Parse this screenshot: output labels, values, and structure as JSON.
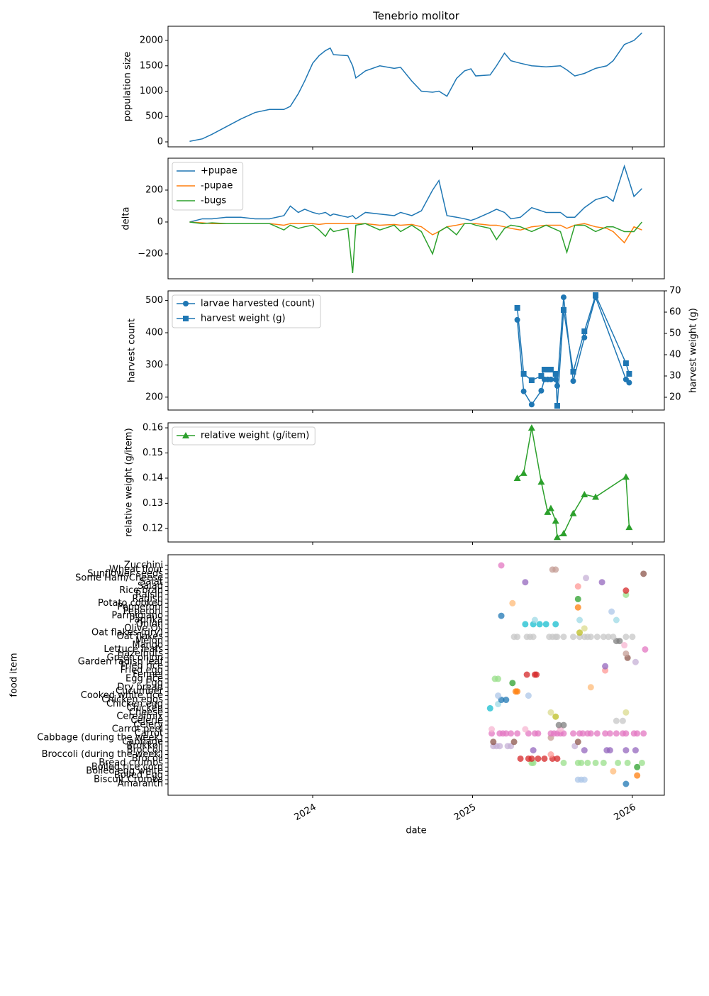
{
  "chart_data": [
    {
      "type": "line",
      "title": "Tenebrio molitor",
      "ylabel": "population size",
      "color": "#1f77b4",
      "x": [
        2023.23,
        2023.31,
        2023.37,
        2023.46,
        2023.55,
        2023.64,
        2023.73,
        2023.82,
        2023.86,
        2023.91,
        2023.95,
        2024.0,
        2024.04,
        2024.08,
        2024.11,
        2024.13,
        2024.22,
        2024.25,
        2024.27,
        2024.33,
        2024.42,
        2024.51,
        2024.55,
        2024.62,
        2024.68,
        2024.75,
        2024.79,
        2024.84,
        2024.9,
        2024.95,
        2024.99,
        2025.02,
        2025.11,
        2025.15,
        2025.2,
        2025.24,
        2025.3,
        2025.37,
        2025.46,
        2025.55,
        2025.59,
        2025.64,
        2025.7,
        2025.77,
        2025.84,
        2025.88,
        2025.95,
        2026.01,
        2026.06
      ],
      "values": [
        10,
        60,
        150,
        300,
        450,
        580,
        640,
        640,
        700,
        950,
        1200,
        1550,
        1700,
        1800,
        1850,
        1720,
        1700,
        1500,
        1260,
        1400,
        1500,
        1450,
        1470,
        1200,
        1000,
        980,
        1000,
        900,
        1250,
        1400,
        1440,
        1300,
        1320,
        1500,
        1750,
        1600,
        1550,
        1500,
        1480,
        1500,
        1420,
        1300,
        1350,
        1450,
        1500,
        1600,
        1920,
        2000,
        2150
      ],
      "xlim": [
        2023.095,
        2026.2
      ],
      "xticks": [
        2024,
        2025,
        2026
      ],
      "ylim": [
        -98,
        2280
      ],
      "yticks": [
        0,
        500,
        1000,
        1500,
        2000
      ]
    },
    {
      "type": "line",
      "ylabel": "delta",
      "legend": "upper left",
      "x": [
        2023.23,
        2023.31,
        2023.37,
        2023.46,
        2023.55,
        2023.64,
        2023.73,
        2023.82,
        2023.86,
        2023.91,
        2023.95,
        2024.0,
        2024.04,
        2024.08,
        2024.11,
        2024.13,
        2024.22,
        2024.25,
        2024.27,
        2024.33,
        2024.42,
        2024.51,
        2024.55,
        2024.62,
        2024.68,
        2024.75,
        2024.79,
        2024.84,
        2024.9,
        2024.95,
        2024.99,
        2025.02,
        2025.11,
        2025.15,
        2025.2,
        2025.24,
        2025.3,
        2025.37,
        2025.46,
        2025.55,
        2025.59,
        2025.64,
        2025.7,
        2025.77,
        2025.84,
        2025.88,
        2025.95,
        2026.01,
        2026.06
      ],
      "series": [
        {
          "name": "+pupae",
          "color": "#1f77b4",
          "values": [
            0,
            20,
            20,
            30,
            30,
            20,
            20,
            40,
            100,
            60,
            80,
            60,
            50,
            60,
            40,
            50,
            30,
            40,
            20,
            60,
            50,
            40,
            60,
            40,
            70,
            200,
            260,
            40,
            30,
            20,
            10,
            20,
            60,
            80,
            60,
            20,
            30,
            90,
            60,
            60,
            30,
            30,
            90,
            140,
            160,
            130,
            350,
            160,
            210
          ]
        },
        {
          "name": "-pupae",
          "color": "#ff7f0e",
          "values": [
            0,
            -5,
            -10,
            -10,
            -10,
            -10,
            -10,
            -20,
            -10,
            -10,
            -10,
            -10,
            -15,
            -10,
            -10,
            -10,
            -10,
            -10,
            -10,
            -10,
            -20,
            -15,
            -20,
            -15,
            -30,
            -80,
            -60,
            -30,
            -20,
            -10,
            -10,
            -10,
            -20,
            -20,
            -30,
            -40,
            -50,
            -30,
            -20,
            -20,
            -40,
            -20,
            -10,
            -30,
            -40,
            -60,
            -130,
            -30,
            -50
          ]
        },
        {
          "name": "-bugs",
          "color": "#2ca02c",
          "values": [
            0,
            -10,
            -5,
            -10,
            -10,
            -10,
            -10,
            -50,
            -20,
            -40,
            -30,
            -20,
            -50,
            -90,
            -40,
            -60,
            -40,
            -320,
            -20,
            -10,
            -50,
            -20,
            -60,
            -20,
            -60,
            -200,
            -60,
            -30,
            -80,
            -10,
            -10,
            -20,
            -40,
            -110,
            -40,
            -20,
            -30,
            -60,
            -20,
            -60,
            -190,
            -20,
            -20,
            -60,
            -30,
            -30,
            -60,
            -60,
            0
          ]
        }
      ],
      "xlim": [
        2023.095,
        2026.2
      ],
      "xticks": [
        2024,
        2025,
        2026
      ],
      "ylim": [
        -356,
        400
      ],
      "yticks": [
        {
          "value": -200,
          "label": "−200"
        },
        0,
        200
      ]
    },
    {
      "type": "line",
      "ylabel": "harvest count",
      "y2label": "harvest weight (g)",
      "legend": "upper left",
      "x": [
        2025.28,
        2025.32,
        2025.37,
        2025.43,
        2025.45,
        2025.47,
        2025.49,
        2025.52,
        2025.53,
        2025.57,
        2025.63,
        2025.7,
        2025.77,
        2025.96,
        2025.98
      ],
      "series": [
        {
          "name": "larvae harvested (count)",
          "color": "#1f77b4",
          "marker": "o",
          "values": [
            440,
            218,
            177,
            220,
            255,
            255,
            255,
            255,
            235,
            510,
            250,
            385,
            510,
            255,
            245
          ]
        },
        {
          "name": "harvest weight (g)",
          "color": "#1f77b4",
          "marker": "s",
          "axis": "y2",
          "values": [
            62,
            31,
            28,
            30,
            33,
            33,
            33,
            31,
            16,
            61,
            32,
            51,
            68,
            36,
            31
          ]
        }
      ],
      "xlim": [
        2023.095,
        2026.2
      ],
      "xticks": [
        2024,
        2025,
        2026
      ],
      "ylim": [
        160,
        530
      ],
      "yticks": [
        200,
        300,
        400,
        500
      ],
      "y2lim": [
        14,
        70
      ],
      "y2ticks": [
        20,
        30,
        40,
        50,
        60,
        70
      ]
    },
    {
      "type": "line",
      "ylabel": "relative weight (g/item)",
      "legend": "upper left",
      "x": [
        2025.28,
        2025.32,
        2025.37,
        2025.43,
        2025.47,
        2025.49,
        2025.52,
        2025.53,
        2025.57,
        2025.63,
        2025.7,
        2025.77,
        2025.96,
        2025.98
      ],
      "series": [
        {
          "name": "relative weight (g/item)",
          "color": "#2ca02c",
          "marker": "^",
          "values": [
            0.14,
            0.142,
            0.16,
            0.1385,
            0.1265,
            0.128,
            0.123,
            0.1165,
            0.118,
            0.126,
            0.1335,
            0.1325,
            0.1405,
            0.1205
          ]
        }
      ],
      "xlim": [
        2023.095,
        2026.2
      ],
      "xticks": [
        2024,
        2025,
        2026
      ],
      "ylim": [
        0.1146,
        0.162
      ],
      "yticks": [
        0.12,
        0.13,
        0.14,
        0.15,
        0.16
      ]
    },
    {
      "type": "scatter",
      "ylabel": "food item",
      "xlabel": "date",
      "palette": [
        "#1f77b4",
        "#aec7e8",
        "#ff7f0e",
        "#ffbb78",
        "#2ca02c",
        "#98df8a",
        "#d62728",
        "#ff9896",
        "#9467bd",
        "#c5b0d5",
        "#8c564b",
        "#c49c94",
        "#e377c2",
        "#f7b6d2",
        "#7f7f7f",
        "#c7c7c7",
        "#bcbd22",
        "#dbdb8d",
        "#17becf",
        "#9edae5"
      ],
      "categories": [
        "Amaranth",
        "Biscuit Crumbs",
        "Boiled Egg",
        "Boiled egg white",
        "Boiled rice corn",
        "Bread crumbs",
        "Brocoli",
        "Broccoli (during the week)",
        "Broccoli",
        "Brokkoli",
        "Cabbage",
        "Cabbage (during the week)",
        "Carrot",
        "Carrot peel",
        "Celery",
        "Celerie",
        "Cerealmix",
        "Cheese",
        "Chicken",
        "Chicken egg",
        "Chicken eggs",
        "Cooked white rice",
        "Cucumber",
        "Dry bread",
        "Egg",
        "Egg rice",
        "Fennel",
        "Fried egg",
        "Fried rice",
        "Garden radish leaf",
        "Green onion",
        "Hazelnuts",
        "Lettuce leafs",
        "Mango",
        "Melon",
        "Oat flakes",
        "Oat flakes (dry)",
        "Olive Oil",
        "Onion",
        "Paprika",
        "Parmigiano",
        "Peperoni",
        "Pepperoni",
        "Potato cooked",
        "Radish",
        "Raisin",
        "Rice bran",
        "Salad",
        "Salat",
        "Some Ham/Cheese",
        "Sunflower seeds",
        "Wheat flour",
        "Zucchini"
      ],
      "dates": [
        [
          2025.96
        ],
        [
          2025.66,
          2025.68,
          2025.7
        ],
        [
          2026.03
        ],
        [
          2025.88
        ],
        [
          2026.03
        ],
        [
          2025.37,
          2025.38,
          2025.57,
          2025.66,
          2025.68,
          2025.72,
          2025.77,
          2025.82,
          2025.91,
          2025.97,
          2026.06
        ],
        [
          2025.3,
          2025.35,
          2025.37,
          2025.41,
          2025.45,
          2025.5,
          2025.53
        ],
        [
          2025.49
        ],
        [
          2025.38,
          2025.7,
          2025.84,
          2025.86,
          2025.96,
          2026.02
        ],
        [
          2025.13,
          2025.15,
          2025.17,
          2025.22,
          2025.24,
          2025.64
        ],
        [
          2025.13,
          2025.26,
          2025.66
        ],
        [
          2025.49
        ],
        [
          2025.12,
          2025.17,
          2025.19,
          2025.21,
          2025.24,
          2025.28,
          2025.35,
          2025.39,
          2025.41,
          2025.49,
          2025.51,
          2025.53,
          2025.55,
          2025.57,
          2025.63,
          2025.67,
          2025.69,
          2025.72,
          2025.74,
          2025.78,
          2025.83,
          2025.86,
          2025.9,
          2025.94,
          2025.96,
          2026.01,
          2026.03,
          2026.07
        ],
        [
          2025.12,
          2025.33,
          2025.55
        ],
        [
          2025.54,
          2025.57
        ],
        [
          2025.9,
          2025.94
        ],
        [
          2025.52
        ],
        [
          2025.49,
          2025.96
        ],
        [
          2025.11
        ],
        [
          2025.16
        ],
        [
          2025.18,
          2025.21
        ],
        [
          2025.16,
          2025.35
        ],
        [
          2025.27,
          2025.28
        ],
        [
          2025.74
        ],
        [
          2025.25
        ],
        [
          2025.14,
          2025.16
        ],
        [
          2025.34,
          2025.39,
          2025.4
        ],
        [
          2025.83
        ],
        [
          2025.83
        ],
        [
          2026.02
        ],
        [
          2025.97
        ],
        [
          2025.96
        ],
        [
          2026.08
        ],
        [
          2025.95
        ],
        [
          2025.9,
          2025.92
        ],
        [
          2025.26,
          2025.28,
          2025.34,
          2025.36,
          2025.38,
          2025.48,
          2025.5,
          2025.52,
          2025.53,
          2025.57,
          2025.63,
          2025.67,
          2025.7,
          2025.72,
          2025.74,
          2025.78,
          2025.82,
          2025.85,
          2025.88,
          2025.96,
          2026.0
        ],
        [
          2025.67
        ],
        [
          2025.7
        ],
        [
          2025.33,
          2025.38,
          2025.42,
          2025.46,
          2025.52
        ],
        [
          2025.39,
          2025.67,
          2025.9
        ],
        [
          2025.18
        ],
        [
          2025.87
        ],
        [
          2025.66
        ],
        [
          2025.25
        ],
        [
          2025.66
        ],
        [
          2025.96
        ],
        [
          2025.96
        ],
        [
          2025.66
        ],
        [
          2025.33,
          2025.81
        ],
        [
          2025.71
        ],
        [
          2026.07
        ],
        [
          2025.5,
          2025.52
        ],
        [
          2025.18
        ]
      ],
      "xlim": [
        2023.095,
        2026.2
      ],
      "xticks": [
        2024,
        2025,
        2026
      ]
    }
  ]
}
